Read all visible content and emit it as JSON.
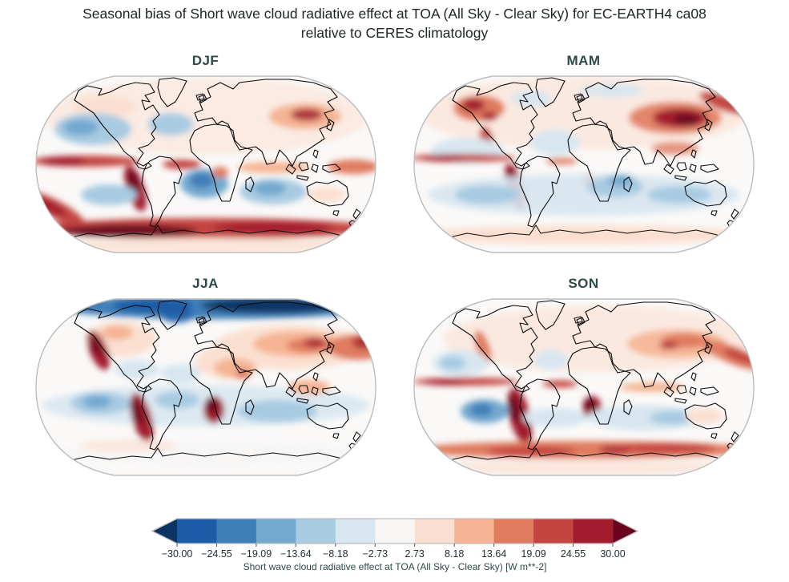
{
  "title": {
    "line1": "Seasonal bias of Short wave cloud radiative effect at TOA (All Sky - Clear Sky) for EC-EARTH4 ca08",
    "line2": "relative to CERES climatology"
  },
  "panels": [
    {
      "id": "djf",
      "label": "DJF"
    },
    {
      "id": "mam",
      "label": "MAM"
    },
    {
      "id": "jja",
      "label": "JJA"
    },
    {
      "id": "son",
      "label": "SON"
    }
  ],
  "colorbar": {
    "label": "Short wave cloud radiative effect at TOA (All Sky - Clear Sky) [W m**-2]",
    "ticks": [
      "−30.00",
      "−24.55",
      "−19.09",
      "−13.64",
      "−8.18",
      "−2.73",
      "2.73",
      "8.18",
      "13.64",
      "19.09",
      "24.55",
      "30.00"
    ],
    "segment_colors": [
      "#1c5ba5",
      "#3f7fb9",
      "#73a9cf",
      "#a8cbe2",
      "#d7e6f0",
      "#f7f6f5",
      "#fbe0d1",
      "#f5b493",
      "#e07b5e",
      "#c44440",
      "#a31d2e"
    ],
    "extend_left_color": "#0b3464",
    "extend_right_color": "#6a0320",
    "tick_color": "#1f2c31",
    "label_color": "#2d4a47",
    "outline_color": "#bdbdbd"
  },
  "chart_data": {
    "type": "heatmap",
    "subtype": "filled-contour global bias maps, Robinson projection, 2x2 seasonal panels",
    "title": "Seasonal bias of Short wave cloud radiative effect at TOA (All Sky - Clear Sky) for EC-EARTH4 ca08 relative to CERES climatology",
    "panels": [
      "DJF",
      "MAM",
      "JJA",
      "SON"
    ],
    "colorbar_label": "Short wave cloud radiative effect at TOA (All Sky - Clear Sky) [W m**-2]",
    "units": "W m**-2",
    "levels": [
      -30.0,
      -24.55,
      -19.09,
      -13.64,
      -8.18,
      -2.73,
      2.73,
      8.18,
      13.64,
      19.09,
      24.55,
      30.0
    ],
    "colormap": "diverging blue-white-red (RdBu_r style), extended with arrows at both ends",
    "legend_position": "horizontal colorbar at bottom center",
    "visible_patterns": {
      "DJF": "strong positive (red) band over the Southern Ocean ~60S, red ITCZ stripe north of the equator, dark red bias off the Peru coast, negative (blue) subtropical oceans, red patch over Tibet/central Asia",
      "MAM": "large dark red bias over central/eastern Asia and western North America, red Peru coastal bias, red equatorial Pacific stripe, mostly light blue oceans, weak pink Southern Ocean band",
      "JJA": "strong negative (dark blue) bias over the Arctic, dark red stratocumulus-region biases off California, Peru and Namibia, red over Eurasia and NW Pacific, blue southern subtropical oceans",
      "SON": "dark red biases off Peru/Chile and Namibia coasts, moderate red Southern Ocean band, red ITCZ stripe, blue SE Pacific patch, light red over continents"
    }
  }
}
